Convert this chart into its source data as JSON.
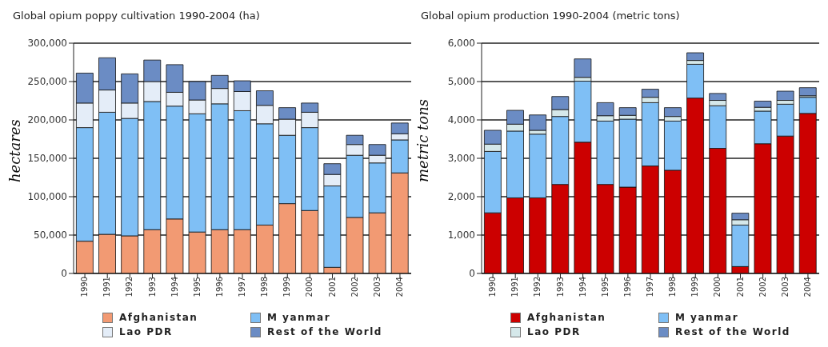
{
  "chart_data": [
    {
      "type": "bar",
      "title": "Global opium poppy cultivation 1990-2004 (ha)",
      "ylabel": "hectares",
      "stacked": true,
      "grid": "y",
      "legend": "bottom",
      "categories": [
        "1990",
        "1991",
        "1992",
        "1993",
        "1994",
        "1995",
        "1996",
        "1997",
        "1998",
        "1999",
        "2000",
        "2001",
        "2002",
        "2003",
        "2004"
      ],
      "ylim": [
        0,
        300000
      ],
      "yticks": [
        0,
        {
          "value": 50000,
          "label": "50,000"
        },
        {
          "value": 100000,
          "label": "100,000"
        },
        {
          "value": 150000,
          "label": "150,000"
        },
        {
          "value": 200000,
          "label": "200,000"
        },
        {
          "value": 250000,
          "label": "250,000"
        },
        {
          "value": 300000,
          "label": "300,000"
        }
      ],
      "series": [
        {
          "name": "Afghanistan",
          "color": "#f29a73",
          "values": [
            42000,
            51000,
            49000,
            57000,
            71000,
            54000,
            57000,
            57000,
            63000,
            91000,
            82000,
            8000,
            73000,
            79000,
            131000
          ]
        },
        {
          "name": "M yanmar",
          "color": "#7fbff5",
          "values": [
            148000,
            159000,
            153000,
            167000,
            147000,
            154000,
            164000,
            155000,
            132000,
            89000,
            108000,
            106000,
            81000,
            65000,
            43000
          ]
        },
        {
          "name": "Lao PDR",
          "color": "#e4edf8",
          "values": [
            32000,
            29000,
            20000,
            26000,
            18000,
            18000,
            20000,
            25000,
            24000,
            21000,
            20000,
            15000,
            14000,
            10000,
            8000
          ]
        },
        {
          "name": "Rest of the World",
          "color": "#6b8cc4",
          "values": [
            39000,
            42000,
            38000,
            28000,
            36000,
            24000,
            17000,
            14000,
            19000,
            15000,
            12000,
            14000,
            12000,
            14000,
            14000
          ]
        }
      ]
    },
    {
      "type": "bar",
      "title": "Global opium production 1990-2004 (metric tons)",
      "ylabel": "metric tons",
      "stacked": true,
      "grid": "y",
      "legend": "bottom",
      "categories": [
        "1990",
        "1991",
        "1992",
        "1993",
        "1994",
        "1995",
        "1996",
        "1997",
        "1998",
        "1999",
        "2000",
        "2001",
        "2002",
        "2003",
        "2004"
      ],
      "ylim": [
        0,
        6000
      ],
      "yticks": [
        0,
        {
          "value": 1000,
          "label": "1,000"
        },
        {
          "value": 2000,
          "label": "2,000"
        },
        {
          "value": 3000,
          "label": "3,000"
        },
        {
          "value": 4000,
          "label": "4,000"
        },
        {
          "value": 5000,
          "label": "5,000"
        },
        {
          "value": 6000,
          "label": "6,000"
        }
      ],
      "series": [
        {
          "name": "Afghanistan",
          "color": "#cc0000",
          "values": [
            1580,
            1970,
            1970,
            2320,
            3420,
            2320,
            2250,
            2800,
            2690,
            4570,
            3260,
            180,
            3380,
            3580,
            4170
          ]
        },
        {
          "name": "M yanmar",
          "color": "#7fbff5",
          "values": [
            1600,
            1740,
            1660,
            1770,
            1590,
            1650,
            1770,
            1650,
            1280,
            880,
            1110,
            1080,
            850,
            830,
            420
          ]
        },
        {
          "name": "Lao PDR",
          "color": "#d5e8ea",
          "values": [
            190,
            180,
            100,
            180,
            100,
            140,
            100,
            140,
            120,
            100,
            140,
            140,
            100,
            100,
            40
          ]
        },
        {
          "name": "Rest of the World",
          "color": "#6b8cc4",
          "values": [
            360,
            360,
            400,
            340,
            480,
            340,
            200,
            210,
            230,
            200,
            180,
            170,
            160,
            240,
            210
          ]
        }
      ]
    }
  ]
}
